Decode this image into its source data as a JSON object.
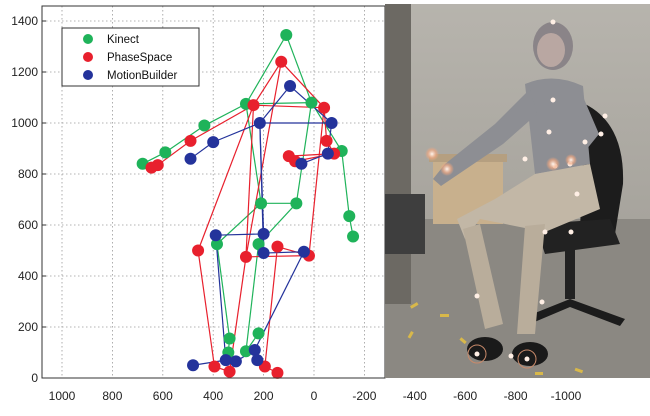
{
  "chart_data": {
    "type": "scatter",
    "title": "",
    "xlabel": "",
    "ylabel": "",
    "xlim": [
      1050,
      -1100
    ],
    "ylim": [
      0,
      1420
    ],
    "x_reversed": true,
    "grid": true,
    "x_ticks": [
      {
        "value": 1000,
        "label": "1000"
      },
      {
        "value": 800,
        "label": "800"
      },
      {
        "value": 600,
        "label": "600"
      },
      {
        "value": 400,
        "label": "400"
      },
      {
        "value": 200,
        "label": "200"
      },
      {
        "value": 0,
        "label": "0"
      },
      {
        "value": -200,
        "label": "-200"
      },
      {
        "value": -400,
        "label": "-400"
      },
      {
        "value": -600,
        "label": "-600"
      },
      {
        "value": -800,
        "label": "-800"
      },
      {
        "value": -1000,
        "label": "-1000"
      }
    ],
    "y_ticks": [
      {
        "value": 0,
        "label": "0"
      },
      {
        "value": 200,
        "label": "200"
      },
      {
        "value": 400,
        "label": "400"
      },
      {
        "value": 600,
        "label": "600"
      },
      {
        "value": 800,
        "label": "800"
      },
      {
        "value": 1000,
        "label": "1000"
      },
      {
        "value": 1200,
        "label": "1200"
      },
      {
        "value": 1400,
        "label": "1400"
      }
    ],
    "legend_position": "top-left",
    "series": [
      {
        "name": "Kinect",
        "color": "#1fb35a",
        "points": [
          {
            "x": 110,
            "y": 1345
          },
          {
            "x": 270,
            "y": 1075
          },
          {
            "x": 10,
            "y": 1080
          },
          {
            "x": 435,
            "y": 990
          },
          {
            "x": 590,
            "y": 885
          },
          {
            "x": 680,
            "y": 840
          },
          {
            "x": -110,
            "y": 890
          },
          {
            "x": -140,
            "y": 635
          },
          {
            "x": -155,
            "y": 555
          },
          {
            "x": 210,
            "y": 685
          },
          {
            "x": 70,
            "y": 685
          },
          {
            "x": 385,
            "y": 525
          },
          {
            "x": 220,
            "y": 525
          },
          {
            "x": 335,
            "y": 155
          },
          {
            "x": 340,
            "y": 100
          },
          {
            "x": 270,
            "y": 105
          },
          {
            "x": 220,
            "y": 175
          }
        ],
        "lines": [
          [
            0,
            1
          ],
          [
            0,
            2
          ],
          [
            1,
            2
          ],
          [
            1,
            3
          ],
          [
            3,
            4
          ],
          [
            4,
            5
          ],
          [
            2,
            6
          ],
          [
            6,
            7
          ],
          [
            7,
            8
          ],
          [
            1,
            9
          ],
          [
            2,
            10
          ],
          [
            9,
            10
          ],
          [
            9,
            11
          ],
          [
            10,
            12
          ],
          [
            11,
            13
          ],
          [
            13,
            14
          ],
          [
            12,
            15
          ],
          [
            15,
            16
          ]
        ]
      },
      {
        "name": "PhaseSpace",
        "color": "#e8202d",
        "points": [
          {
            "x": 130,
            "y": 1240
          },
          {
            "x": 240,
            "y": 1070
          },
          {
            "x": -40,
            "y": 1060
          },
          {
            "x": 490,
            "y": 930
          },
          {
            "x": 620,
            "y": 835
          },
          {
            "x": 645,
            "y": 825
          },
          {
            "x": -50,
            "y": 930
          },
          {
            "x": -80,
            "y": 880
          },
          {
            "x": 100,
            "y": 870
          },
          {
            "x": 75,
            "y": 850
          },
          {
            "x": 460,
            "y": 500
          },
          {
            "x": 270,
            "y": 475
          },
          {
            "x": 145,
            "y": 515
          },
          {
            "x": 20,
            "y": 480
          },
          {
            "x": 395,
            "y": 45
          },
          {
            "x": 335,
            "y": 25
          },
          {
            "x": 195,
            "y": 45
          },
          {
            "x": 145,
            "y": 20
          }
        ],
        "lines": [
          [
            0,
            1
          ],
          [
            0,
            2
          ],
          [
            1,
            2
          ],
          [
            1,
            3
          ],
          [
            3,
            4
          ],
          [
            4,
            5
          ],
          [
            2,
            6
          ],
          [
            6,
            7
          ],
          [
            7,
            8
          ],
          [
            7,
            9
          ],
          [
            1,
            11
          ],
          [
            2,
            13
          ],
          [
            11,
            13
          ],
          [
            1,
            10
          ],
          [
            10,
            14
          ],
          [
            14,
            15
          ],
          [
            11,
            15
          ],
          [
            12,
            13
          ],
          [
            12,
            16
          ],
          [
            16,
            17
          ],
          [
            0,
            11
          ]
        ]
      },
      {
        "name": "MotionBuilder",
        "color": "#24339b",
        "points": [
          {
            "x": 95,
            "y": 1145
          },
          {
            "x": 215,
            "y": 1000
          },
          {
            "x": -70,
            "y": 1000
          },
          {
            "x": 400,
            "y": 925
          },
          {
            "x": 490,
            "y": 860
          },
          {
            "x": -55,
            "y": 880
          },
          {
            "x": 50,
            "y": 840
          },
          {
            "x": 390,
            "y": 560
          },
          {
            "x": 200,
            "y": 565
          },
          {
            "x": 200,
            "y": 490
          },
          {
            "x": 40,
            "y": 495
          },
          {
            "x": 480,
            "y": 50
          },
          {
            "x": 350,
            "y": 70
          },
          {
            "x": 310,
            "y": 65
          },
          {
            "x": 235,
            "y": 110
          },
          {
            "x": 225,
            "y": 70
          }
        ],
        "lines": [
          [
            0,
            1
          ],
          [
            0,
            2
          ],
          [
            1,
            2
          ],
          [
            1,
            3
          ],
          [
            3,
            4
          ],
          [
            2,
            5
          ],
          [
            5,
            6
          ],
          [
            1,
            8
          ],
          [
            8,
            9
          ],
          [
            9,
            10
          ],
          [
            7,
            8
          ],
          [
            7,
            12
          ],
          [
            12,
            11
          ],
          [
            10,
            14
          ],
          [
            14,
            15
          ],
          [
            13,
            14
          ],
          [
            1,
            9
          ]
        ]
      }
    ]
  },
  "photo": {
    "description_icon": "motion-capture-photo",
    "wall_color": "#a9a69f",
    "floor_color": "#8f8c86",
    "chair_color": "#1c1c1c",
    "shirt_color": "#8d8e93",
    "pants_color": "#c2b7a6",
    "marker_color": "#ffefe5"
  }
}
